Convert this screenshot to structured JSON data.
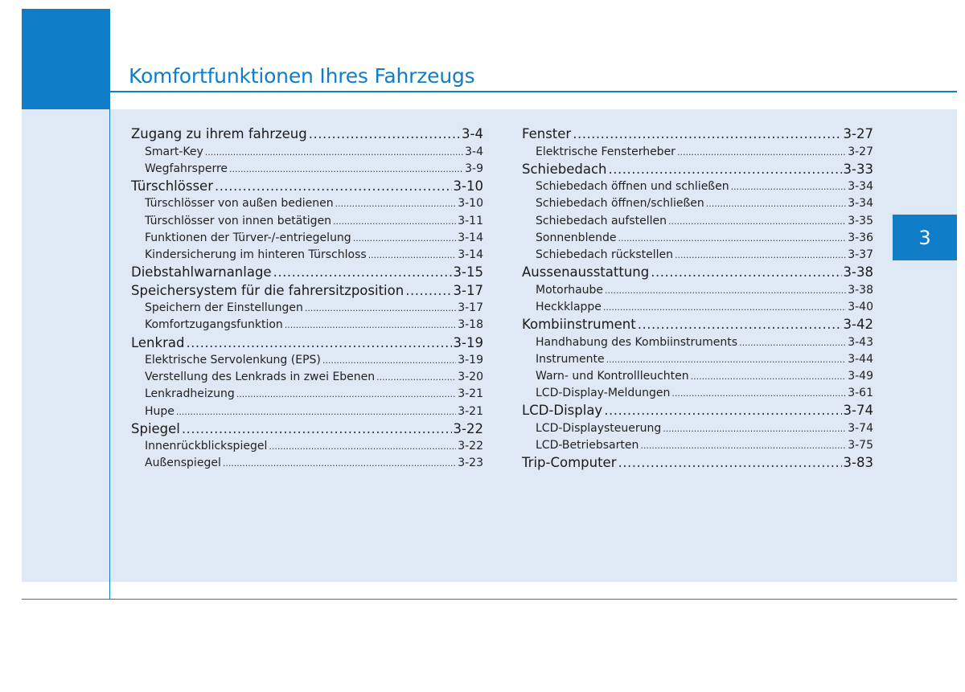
{
  "header": {
    "title": "Komfortfunktionen Ihres Fahrzeugs"
  },
  "chapter_tab": "3",
  "toc": {
    "left": [
      {
        "level": "main",
        "label": "Zugang zu ihrem fahrzeug",
        "page": "3-4"
      },
      {
        "level": "sub",
        "label": "Smart-Key",
        "page": "3-4"
      },
      {
        "level": "sub",
        "label": "Wegfahrsperre",
        "page": "3-9"
      },
      {
        "level": "main",
        "label": "Türschlösser",
        "page": "3-10"
      },
      {
        "level": "sub",
        "label": "Türschlösser von außen bedienen",
        "page": "3-10"
      },
      {
        "level": "sub",
        "label": "Türschlösser von innen betätigen",
        "page": "3-11"
      },
      {
        "level": "sub",
        "label": "Funktionen der Türver-/-entriegelung",
        "page": "3-14"
      },
      {
        "level": "sub",
        "label": "Kindersicherung im hinteren Türschloss",
        "page": "3-14"
      },
      {
        "level": "main",
        "label": "Diebstahlwarnanlage",
        "page": "3-15"
      },
      {
        "level": "main",
        "label": "Speichersystem für die fahrersitzposition",
        "page": "3-17"
      },
      {
        "level": "sub",
        "label": "Speichern der Einstellungen",
        "page": "3-17"
      },
      {
        "level": "sub",
        "label": "Komfortzugangsfunktion",
        "page": "3-18"
      },
      {
        "level": "main",
        "label": "Lenkrad",
        "page": "3-19"
      },
      {
        "level": "sub",
        "label": "Elektrische Servolenkung (EPS)",
        "page": "3-19"
      },
      {
        "level": "sub",
        "label": "Verstellung des Lenkrads in zwei Ebenen",
        "page": "3-20"
      },
      {
        "level": "sub",
        "label": "Lenkradheizung",
        "page": "3-21"
      },
      {
        "level": "sub",
        "label": "Hupe",
        "page": "3-21"
      },
      {
        "level": "main",
        "label": "Spiegel",
        "page": "3-22"
      },
      {
        "level": "sub",
        "label": "Innenrückblickspiegel",
        "page": "3-22"
      },
      {
        "level": "sub",
        "label": "Außenspiegel",
        "page": "3-23"
      }
    ],
    "right": [
      {
        "level": "main",
        "label": "Fenster",
        "page": "3-27"
      },
      {
        "level": "sub",
        "label": "Elektrische Fensterheber",
        "page": "3-27"
      },
      {
        "level": "main",
        "label": "Schiebedach",
        "page": "3-33"
      },
      {
        "level": "sub",
        "label": "Schiebedach öffnen und schließen",
        "page": "3-34"
      },
      {
        "level": "sub",
        "label": "Schiebedach öffnen/schließen",
        "page": "3-34"
      },
      {
        "level": "sub",
        "label": "Schiebedach aufstellen",
        "page": "3-35"
      },
      {
        "level": "sub",
        "label": "Sonnenblende",
        "page": "3-36"
      },
      {
        "level": "sub",
        "label": "Schiebedach rückstellen",
        "page": "3-37"
      },
      {
        "level": "main",
        "label": "Aussenausstattung",
        "page": "3-38"
      },
      {
        "level": "sub",
        "label": "Motorhaube",
        "page": "3-38"
      },
      {
        "level": "sub",
        "label": "Heckklappe",
        "page": "3-40"
      },
      {
        "level": "main",
        "label": "Kombiinstrument",
        "page": "3-42"
      },
      {
        "level": "sub",
        "label": "Handhabung des Kombiinstruments",
        "page": "3-43"
      },
      {
        "level": "sub",
        "label": "Instrumente",
        "page": "3-44"
      },
      {
        "level": "sub",
        "label": "Warn- und Kontrollleuchten",
        "page": "3-49"
      },
      {
        "level": "sub",
        "label": "LCD-Display-Meldungen",
        "page": "3-61"
      },
      {
        "level": "main",
        "label": "LCD-Display",
        "page": "3-74"
      },
      {
        "level": "sub",
        "label": "LCD-Displaysteuerung",
        "page": "3-74"
      },
      {
        "level": "sub",
        "label": "LCD-Betriebsarten",
        "page": "3-75"
      },
      {
        "level": "main",
        "label": "Trip-Computer",
        "page": "3-83"
      }
    ]
  }
}
